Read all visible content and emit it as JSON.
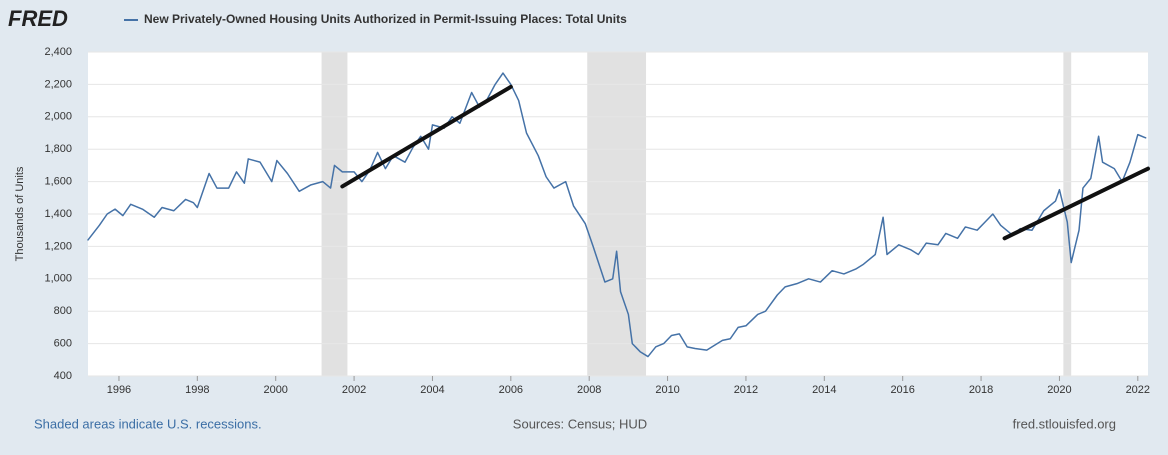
{
  "chart_data": {
    "type": "line",
    "logo": "FRED",
    "title": "New Privately-Owned Housing Units Authorized in Permit-Issuing Places: Total Units",
    "ylabel": "Thousands of Units",
    "note": "Shaded areas indicate U.S. recessions.",
    "source": "Sources: Census; HUD",
    "site": "fred.stlouisfed.org",
    "x": [
      1995.21,
      1995.5,
      1995.7,
      1995.9,
      1996.1,
      1996.3,
      1996.6,
      1996.9,
      1997.1,
      1997.4,
      1997.7,
      1997.9,
      1998.0,
      1998.3,
      1998.5,
      1998.8,
      1999.0,
      1999.2,
      1999.3,
      1999.6,
      1999.9,
      2000.03,
      2000.3,
      2000.6,
      2000.9,
      2001.2,
      2001.4,
      2001.5,
      2001.7,
      2002.0,
      2002.2,
      2002.4,
      2002.6,
      2002.8,
      2003.0,
      2003.3,
      2003.5,
      2003.7,
      2003.9,
      2004.0,
      2004.3,
      2004.5,
      2004.7,
      2005.0,
      2005.2,
      2005.4,
      2005.6,
      2005.8,
      2006.0,
      2006.2,
      2006.4,
      2006.7,
      2006.9,
      2007.1,
      2007.4,
      2007.6,
      2007.9,
      2008.1,
      2008.4,
      2008.6,
      2008.7,
      2008.8,
      2009.0,
      2009.1,
      2009.3,
      2009.5,
      2009.7,
      2009.9,
      2010.1,
      2010.3,
      2010.5,
      2010.7,
      2011.0,
      2011.2,
      2011.4,
      2011.6,
      2011.8,
      2012.0,
      2012.3,
      2012.5,
      2012.8,
      2013.0,
      2013.3,
      2013.6,
      2013.9,
      2014.2,
      2014.5,
      2014.8,
      2015.0,
      2015.3,
      2015.5,
      2015.6,
      2015.9,
      2016.2,
      2016.4,
      2016.6,
      2016.9,
      2017.1,
      2017.4,
      2017.6,
      2017.9,
      2018.1,
      2018.3,
      2018.5,
      2018.8,
      2019.0,
      2019.3,
      2019.6,
      2019.9,
      2020.0,
      2020.2,
      2020.3,
      2020.5,
      2020.6,
      2020.8,
      2021.0,
      2021.1,
      2021.4,
      2021.6,
      2021.8,
      2022.0,
      2022.2
    ],
    "series": [
      {
        "name": "New Privately-Owned Housing Units Authorized in Permit-Issuing Places: Total Units",
        "color": "#4572a7",
        "values": [
          1240,
          1330,
          1400,
          1430,
          1390,
          1460,
          1430,
          1380,
          1440,
          1420,
          1490,
          1470,
          1440,
          1650,
          1560,
          1560,
          1660,
          1590,
          1740,
          1720,
          1600,
          1730,
          1650,
          1540,
          1580,
          1600,
          1560,
          1700,
          1660,
          1660,
          1600,
          1670,
          1780,
          1680,
          1760,
          1720,
          1810,
          1880,
          1800,
          1950,
          1930,
          2000,
          1960,
          2150,
          2060,
          2110,
          2200,
          2270,
          2200,
          2100,
          1900,
          1760,
          1630,
          1560,
          1600,
          1450,
          1340,
          1200,
          980,
          1000,
          1170,
          920,
          780,
          600,
          550,
          520,
          580,
          600,
          650,
          660,
          580,
          570,
          560,
          590,
          620,
          630,
          700,
          710,
          780,
          800,
          900,
          950,
          970,
          1000,
          980,
          1050,
          1030,
          1060,
          1090,
          1150,
          1380,
          1150,
          1210,
          1180,
          1150,
          1220,
          1210,
          1280,
          1250,
          1320,
          1300,
          1350,
          1400,
          1330,
          1270,
          1310,
          1300,
          1420,
          1480,
          1550,
          1350,
          1100,
          1300,
          1560,
          1620,
          1880,
          1720,
          1680,
          1600,
          1720,
          1890,
          1870
        ]
      }
    ],
    "trend_lines": [
      {
        "x": [
          2001.7,
          2006.0
        ],
        "values": [
          1570,
          2185
        ]
      },
      {
        "x": [
          2018.6,
          2022.26
        ],
        "values": [
          1250,
          1680
        ]
      }
    ],
    "recessions": [
      [
        2001.17,
        2001.83
      ],
      [
        2007.95,
        2009.45
      ],
      [
        2020.1,
        2020.3
      ]
    ],
    "xlim": [
      1995.21,
      2022.26
    ],
    "ylim": [
      400,
      2400
    ],
    "xticks": [
      1996,
      1998,
      2000,
      2002,
      2004,
      2006,
      2008,
      2010,
      2012,
      2014,
      2016,
      2018,
      2020,
      2022
    ],
    "yticks": [
      {
        "value": 400,
        "label": "400"
      },
      {
        "value": 600,
        "label": "600"
      },
      {
        "value": 800,
        "label": "800"
      },
      {
        "value": 1000,
        "label": "1,000"
      },
      {
        "value": 1200,
        "label": "1,200"
      },
      {
        "value": 1400,
        "label": "1,400"
      },
      {
        "value": 1600,
        "label": "1,600"
      },
      {
        "value": 1800,
        "label": "1,800"
      },
      {
        "value": 2000,
        "label": "2,000"
      },
      {
        "value": 2200,
        "label": "2,200"
      },
      {
        "value": 2400,
        "label": "2,400"
      }
    ],
    "grid": true
  }
}
